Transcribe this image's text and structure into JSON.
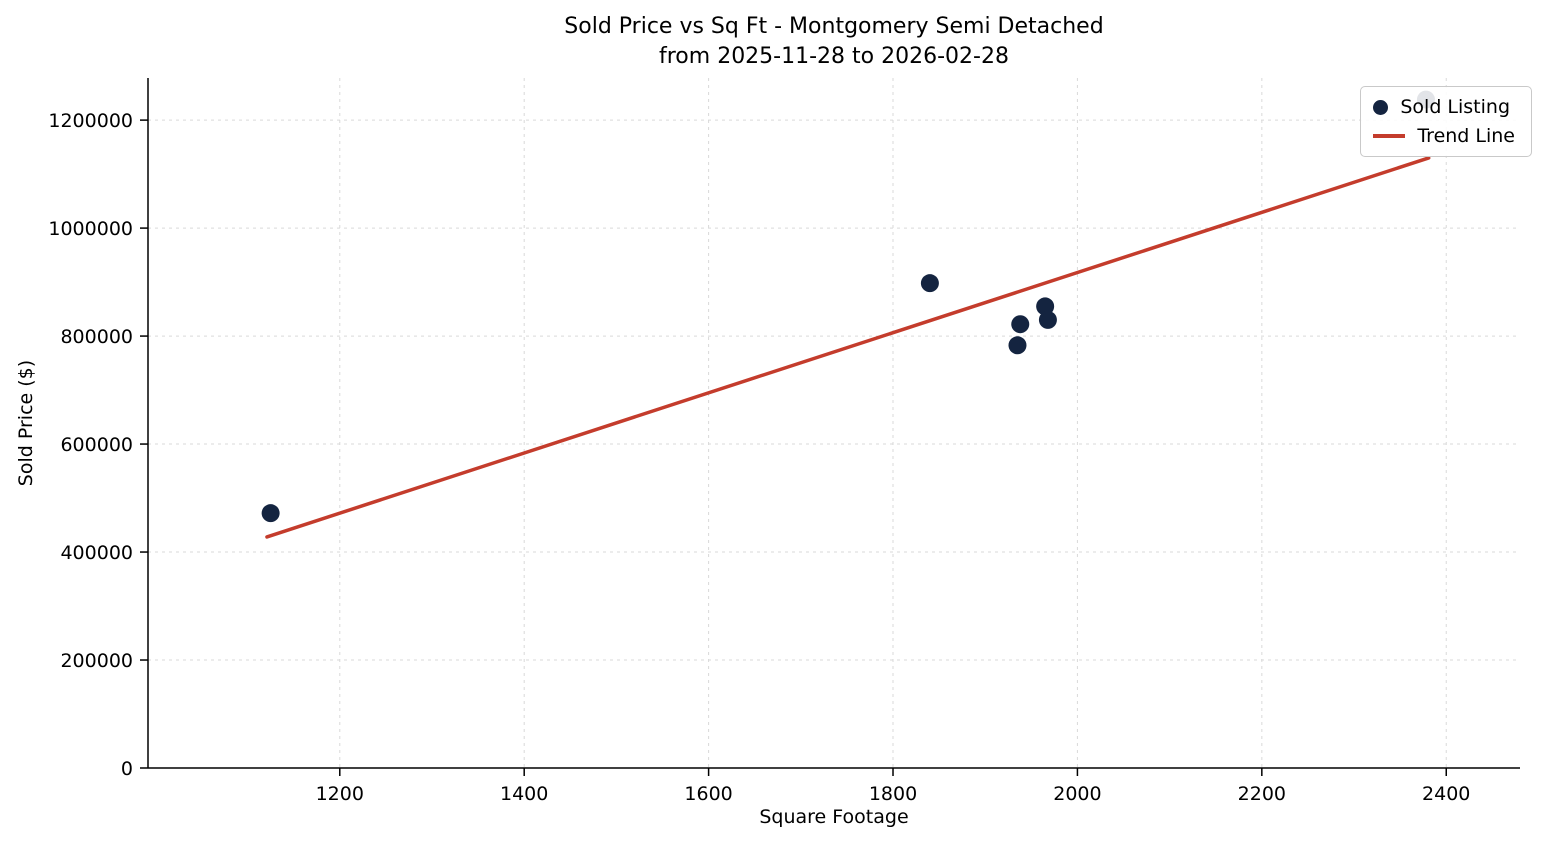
{
  "chart_data": {
    "type": "scatter",
    "title": "Sold Price vs Sq Ft - Montgomery Semi Detached",
    "subtitle": "from 2025-11-28 to 2026-02-28",
    "xlabel": "Square Footage",
    "ylabel": "Sold Price ($)",
    "xlim": [
      992,
      2480
    ],
    "ylim": [
      0,
      1278000
    ],
    "x_ticks": [
      1200,
      1400,
      1600,
      1800,
      2000,
      2200,
      2400
    ],
    "y_ticks": [
      0,
      200000,
      400000,
      600000,
      800000,
      1000000,
      1200000
    ],
    "grid": true,
    "grid_style": "dashed",
    "legend_position": "upper right",
    "series": [
      {
        "name": "Sold Listing",
        "type": "scatter",
        "color": "#142440",
        "points": [
          {
            "x": 1125,
            "y": 472000
          },
          {
            "x": 1840,
            "y": 898000
          },
          {
            "x": 1935,
            "y": 783000
          },
          {
            "x": 1938,
            "y": 822000
          },
          {
            "x": 1965,
            "y": 855000
          },
          {
            "x": 1968,
            "y": 830000
          },
          {
            "x": 2378,
            "y": 1238000
          }
        ]
      },
      {
        "name": "Trend Line",
        "type": "line",
        "color": "#c43c2c",
        "points": [
          {
            "x": 1121,
            "y": 428000
          },
          {
            "x": 2381,
            "y": 1130000
          }
        ]
      }
    ],
    "legend": [
      {
        "label": "Sold Listing",
        "marker": "dot",
        "color": "#142440"
      },
      {
        "label": "Trend Line",
        "marker": "line",
        "color": "#c43c2c"
      }
    ]
  }
}
